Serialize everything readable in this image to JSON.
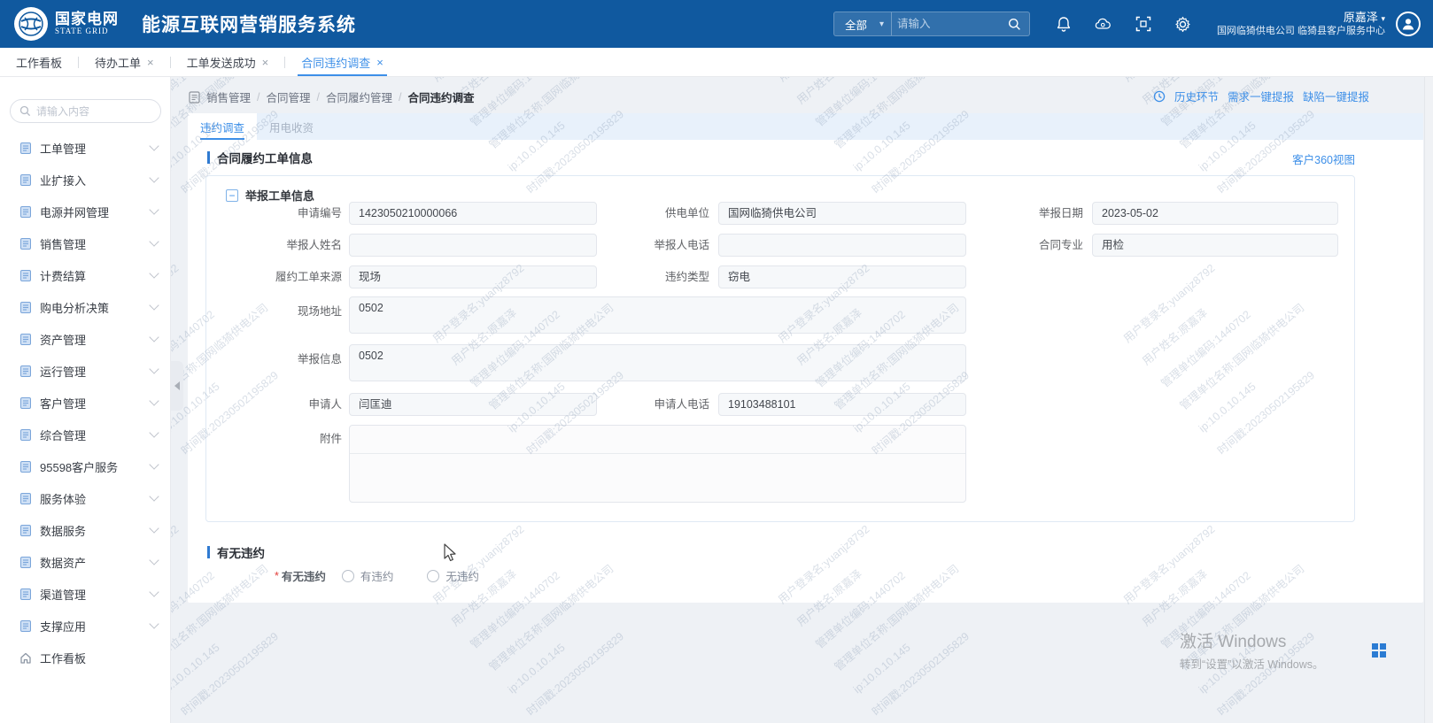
{
  "icons": {
    "close": "×",
    "dropdown_arrow": "▾",
    "collapse_minus": "−"
  },
  "header": {
    "logo": {
      "org_cn": "国家电网",
      "org_en": "STATE GRID"
    },
    "app_title": "能源互联网营销服务系统",
    "search_scope": "全部",
    "search_placeholder": "请输入",
    "user_name": "原嘉泽",
    "user_org": "国网临猗供电公司 临猗县客户服务中心"
  },
  "tabstrip": {
    "tabs": [
      {
        "label": "工作看板"
      },
      {
        "label": "待办工单"
      },
      {
        "label": "工单发送成功"
      },
      {
        "label": "合同违约调查"
      }
    ]
  },
  "sidebar": {
    "search_placeholder": "请输入内容",
    "items": [
      {
        "label": "工单管理"
      },
      {
        "label": "业扩接入"
      },
      {
        "label": "电源并网管理"
      },
      {
        "label": "销售管理"
      },
      {
        "label": "计费结算"
      },
      {
        "label": "购电分析决策"
      },
      {
        "label": "资产管理"
      },
      {
        "label": "运行管理"
      },
      {
        "label": "客户管理"
      },
      {
        "label": "综合管理"
      },
      {
        "label": "95598客户服务"
      },
      {
        "label": "服务体验"
      },
      {
        "label": "数据服务"
      },
      {
        "label": "数据资产"
      },
      {
        "label": "渠道管理"
      },
      {
        "label": "支撑应用"
      },
      {
        "label": "工作看板"
      }
    ]
  },
  "breadcrumb": {
    "separator": "/",
    "items": [
      "销售管理",
      "合同管理",
      "合同履约管理",
      "合同违约调查"
    ]
  },
  "quick_links": {
    "history": "历史环节",
    "demand": "需求一键提报",
    "defect": "缺陷一键提报"
  },
  "page": {
    "tabs": [
      {
        "label": "违约调查"
      },
      {
        "label": "用电收资"
      }
    ],
    "section1_title": "合同履约工单信息",
    "customer360_link": "客户360视图",
    "group_title": "举报工单信息",
    "fields": {
      "apply_no": {
        "label": "申请编号",
        "value": "1423050210000066"
      },
      "supply_org": {
        "label": "供电单位",
        "value": "国网临猗供电公司"
      },
      "report_date": {
        "label": "举报日期",
        "value": "2023-05-02"
      },
      "reporter_name": {
        "label": "举报人姓名",
        "value": ""
      },
      "reporter_phone": {
        "label": "举报人电话",
        "value": ""
      },
      "contract_major": {
        "label": "合同专业",
        "value": "用检"
      },
      "order_source": {
        "label": "履约工单来源",
        "value": "现场"
      },
      "breach_type": {
        "label": "违约类型",
        "value": "窃电"
      },
      "site_address": {
        "label": "现场地址",
        "value": "0502"
      },
      "report_info": {
        "label": "举报信息",
        "value": "0502"
      },
      "applicant": {
        "label": "申请人",
        "value": "闫匡迪"
      },
      "applicant_phone": {
        "label": "申请人电话",
        "value": "19103488101"
      },
      "attachment": {
        "label": "附件",
        "value": ""
      }
    },
    "section2_title": "有无违约",
    "breach": {
      "required_mark": "*",
      "label": "有无违约",
      "options": [
        "有违约",
        "无违约"
      ]
    }
  },
  "watermark": {
    "lines": [
      "用户登录名:yuanjz8792",
      "用户姓名:原嘉泽",
      "管理单位编码:1440702",
      "管理单位名称:国网临猗供电公司",
      "ip:10.0.10.145",
      "时间戳:20230502195829"
    ]
  },
  "windows_activation": {
    "line1": "激活 Windows",
    "line2": "转到“设置”以激活 Windows。"
  }
}
